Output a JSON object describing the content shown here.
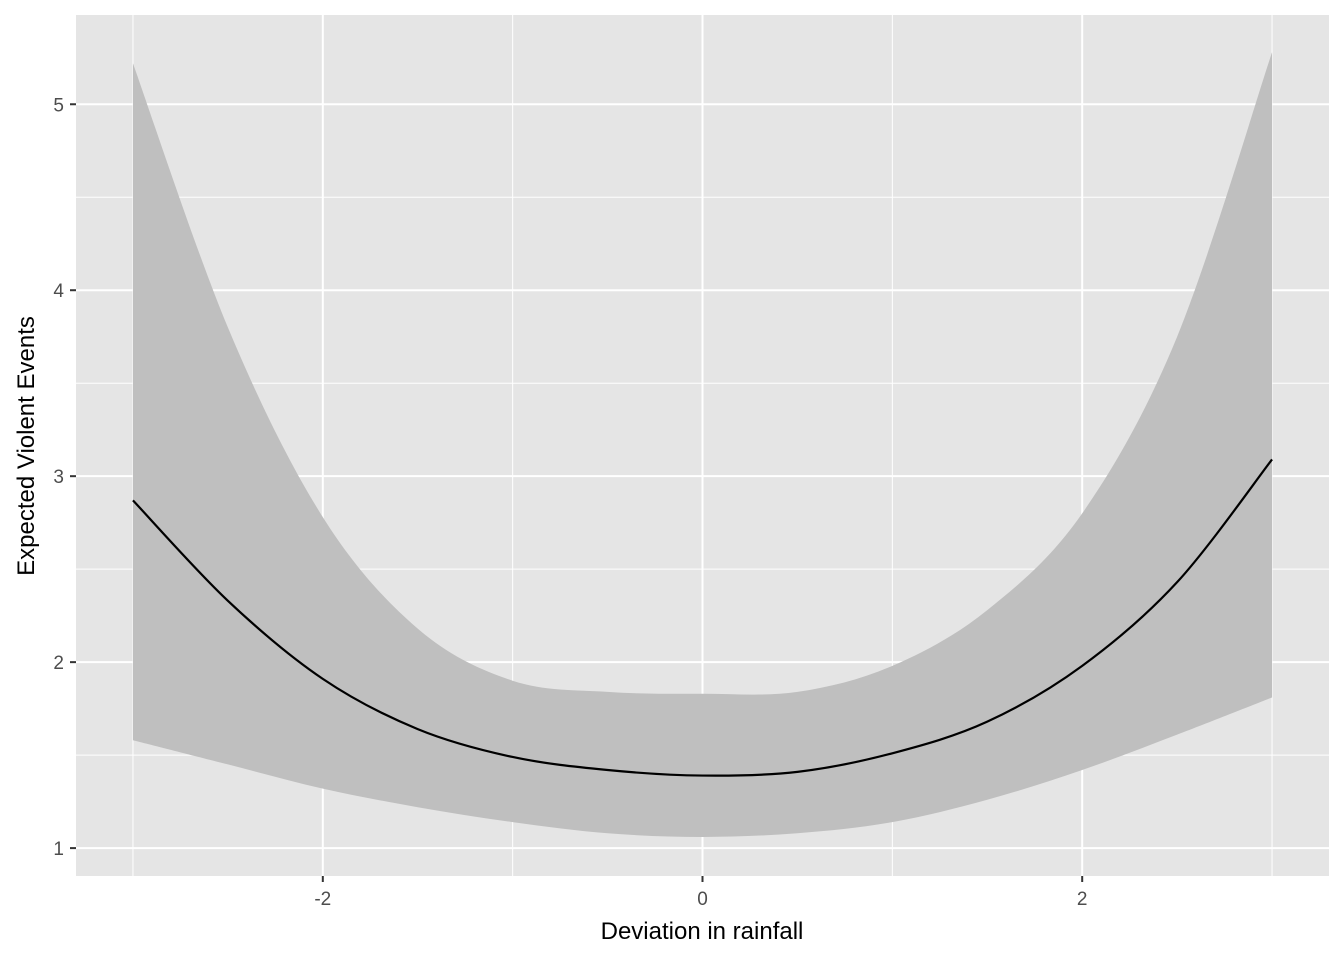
{
  "chart_data": {
    "type": "line",
    "xlabel": "Deviation in rainfall",
    "ylabel": "Expected Violent Events",
    "xlim": [
      -3.3,
      3.3
    ],
    "ylim": [
      0.85,
      5.48
    ],
    "x_ticks": [
      -2,
      0,
      2
    ],
    "x_tick_labels": [
      "-2",
      "0",
      "2"
    ],
    "y_ticks": [
      1,
      2,
      3,
      4,
      5
    ],
    "y_tick_labels": [
      "1",
      "2",
      "3",
      "4",
      "5"
    ],
    "grid": true,
    "legend": "none",
    "series": [
      {
        "type": "ribbon",
        "x": [
          -3,
          -2.5,
          -2,
          -1.5,
          -1,
          -0.5,
          0,
          0.5,
          1,
          1.5,
          2,
          2.5,
          3
        ],
        "lower": [
          1.58,
          1.45,
          1.32,
          1.22,
          1.14,
          1.08,
          1.06,
          1.08,
          1.14,
          1.26,
          1.42,
          1.61,
          1.81
        ],
        "upper": [
          5.22,
          3.8,
          2.78,
          2.18,
          1.9,
          1.84,
          1.83,
          1.84,
          1.98,
          2.28,
          2.8,
          3.75,
          5.28
        ]
      },
      {
        "type": "line",
        "x": [
          -3,
          -2.5,
          -2,
          -1.5,
          -1,
          -0.5,
          0,
          0.5,
          1,
          1.5,
          2,
          2.5,
          3
        ],
        "y": [
          2.87,
          2.33,
          1.91,
          1.64,
          1.49,
          1.42,
          1.39,
          1.41,
          1.51,
          1.68,
          1.98,
          2.43,
          3.09
        ]
      }
    ],
    "colors": {
      "panel_background": "#e5e5e5",
      "grid": "#ffffff",
      "ribbon": "#bfbfbf",
      "line": "#000000"
    }
  }
}
